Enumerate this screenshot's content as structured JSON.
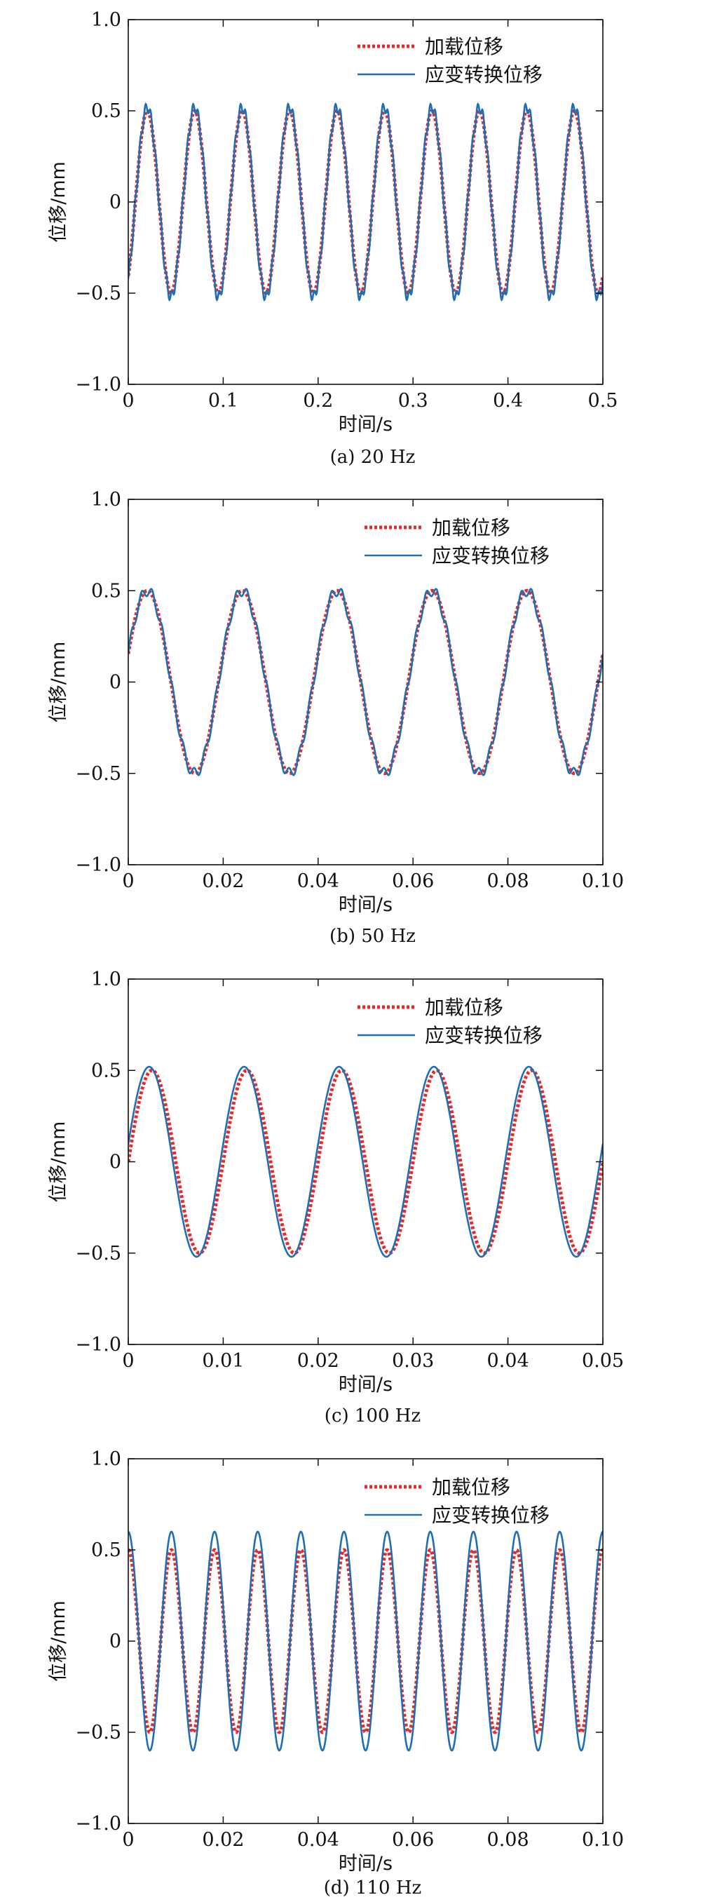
{
  "chart_data": [
    {
      "type": "line",
      "caption": "(a) 20 Hz",
      "xlabel": "时间/s",
      "ylabel": "位移/mm",
      "xlim": [
        0,
        0.5
      ],
      "ylim": [
        -1.0,
        1.0
      ],
      "x_ticks": [
        "0",
        "0.1",
        "0.2",
        "0.3",
        "0.4",
        "0.5"
      ],
      "y_ticks": [
        "−1.0",
        "−0.5",
        "0",
        "0.5",
        "1.0"
      ],
      "legend_position": "top-right",
      "frequency_hz": 20,
      "amplitude_mm": 0.5,
      "series": [
        {
          "name": "加载位移",
          "style": "dotted",
          "color": "#e8292a",
          "amplitude": 0.5,
          "phase_start": 0.0,
          "peak_times": [
            0.02,
            0.07,
            0.12,
            0.17,
            0.22,
            0.27,
            0.32,
            0.37,
            0.42,
            0.47
          ]
        },
        {
          "name": "应变转换位移",
          "style": "solid",
          "color": "#1f6fb5",
          "amplitude": 0.52,
          "phase_start": -0.45,
          "peak_times": [
            0.02,
            0.07,
            0.12,
            0.17,
            0.22,
            0.27,
            0.32,
            0.37,
            0.42,
            0.47
          ]
        }
      ]
    },
    {
      "type": "line",
      "caption": "(b) 50 Hz",
      "xlabel": "时间/s",
      "ylabel": "位移/mm",
      "xlim": [
        0,
        0.1
      ],
      "ylim": [
        -1.0,
        1.0
      ],
      "x_ticks": [
        "0",
        "0.02",
        "0.04",
        "0.06",
        "0.08",
        "0.10"
      ],
      "y_ticks": [
        "−1.0",
        "−0.5",
        "0",
        "0.5",
        "1.0"
      ],
      "legend_position": "top-right",
      "frequency_hz": 50,
      "amplitude_mm": 0.5,
      "series": [
        {
          "name": "加载位移",
          "style": "dotted",
          "color": "#e8292a",
          "amplitude": 0.5,
          "phase_start": 0.2,
          "peak_times": [
            0.004,
            0.024,
            0.044,
            0.064,
            0.084
          ]
        },
        {
          "name": "应变转换位移",
          "style": "solid",
          "color": "#1f6fb5",
          "amplitude": 0.5,
          "phase_start": 0.2,
          "peak_times": [
            0.004,
            0.024,
            0.044,
            0.064,
            0.084
          ]
        }
      ]
    },
    {
      "type": "line",
      "caption": "(c) 100 Hz",
      "xlabel": "时间/s",
      "ylabel": "位移/mm",
      "xlim": [
        0,
        0.05
      ],
      "ylim": [
        -1.0,
        1.0
      ],
      "x_ticks": [
        "0",
        "0.01",
        "0.02",
        "0.03",
        "0.04",
        "0.05"
      ],
      "y_ticks": [
        "−1.0",
        "−0.5",
        "0",
        "0.5",
        "1.0"
      ],
      "legend_position": "top-right",
      "frequency_hz": 100,
      "amplitude_mm": 0.5,
      "series": [
        {
          "name": "加载位移",
          "style": "dotted",
          "color": "#e8292a",
          "amplitude": 0.5,
          "phase_start": 0.1,
          "peak_times": [
            0.0025,
            0.0125,
            0.0225,
            0.0325,
            0.0425
          ]
        },
        {
          "name": "应变转换位移",
          "style": "solid",
          "color": "#1f6fb5",
          "amplitude": 0.52,
          "phase_start": 0.15,
          "peak_times": [
            0.0022,
            0.012,
            0.022,
            0.032,
            0.042
          ]
        }
      ]
    },
    {
      "type": "line",
      "caption": "(d) 110 Hz",
      "xlabel": "时间/s",
      "ylabel": "位移/mm",
      "xlim": [
        0,
        0.1
      ],
      "ylim": [
        -1.0,
        1.0
      ],
      "x_ticks": [
        "0",
        "0.02",
        "0.04",
        "0.06",
        "0.08",
        "0.10"
      ],
      "y_ticks": [
        "−1.0",
        "−0.5",
        "0",
        "0.5",
        "1.0"
      ],
      "legend_position": "top-right",
      "frequency_hz": 110,
      "amplitude_mm": 0.5,
      "series": [
        {
          "name": "加载位移",
          "style": "dotted",
          "color": "#e8292a",
          "amplitude": 0.5,
          "phase_start": 0.45,
          "peak_times": [
            0.0,
            0.009,
            0.018,
            0.027,
            0.036,
            0.045,
            0.054,
            0.063,
            0.072,
            0.081,
            0.09,
            0.099
          ]
        },
        {
          "name": "应变转换位移",
          "style": "solid",
          "color": "#1f6fb5",
          "amplitude": 0.6,
          "phase_start": 0.45,
          "peak_times": [
            0.0,
            0.009,
            0.018,
            0.027,
            0.036,
            0.045,
            0.054,
            0.063,
            0.072,
            0.081,
            0.09,
            0.099
          ]
        }
      ]
    }
  ]
}
